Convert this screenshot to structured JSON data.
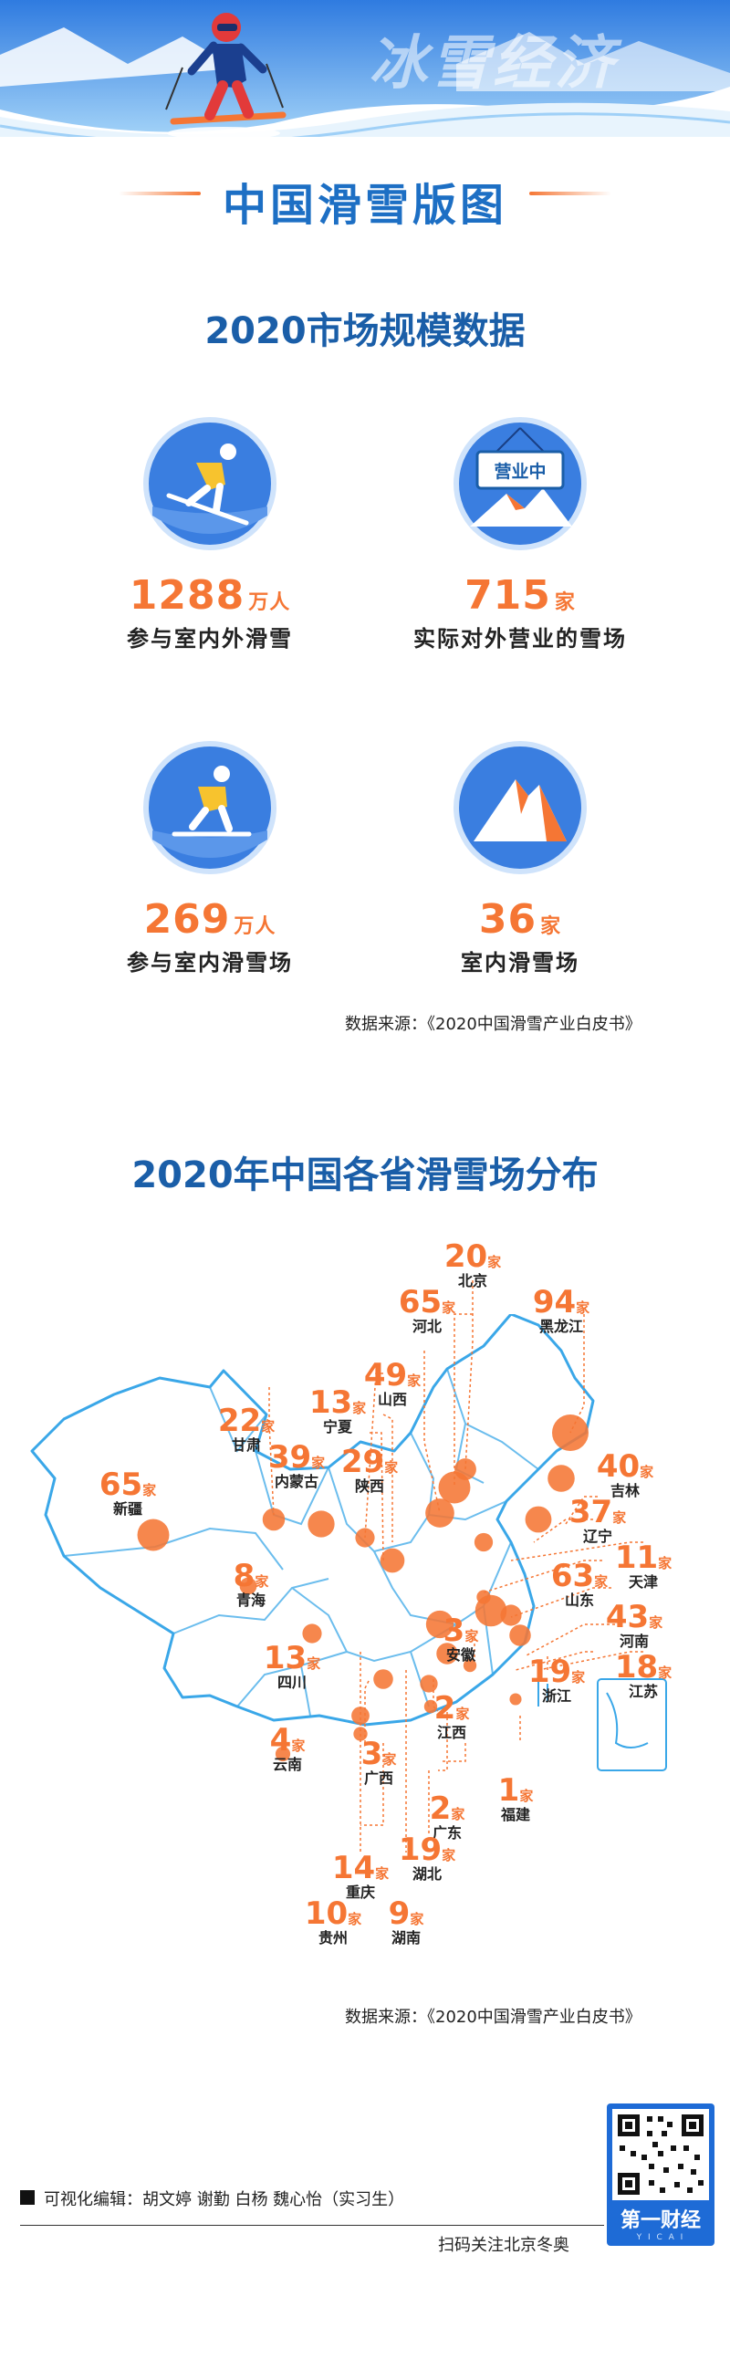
{
  "header": {
    "banner_text": "冰雪经济",
    "title": "中国滑雪版图"
  },
  "market": {
    "section_title": "2020市场规模数据",
    "stats": [
      {
        "number": "1288",
        "unit": "万人",
        "label": "参与室内外滑雪",
        "icon": "skier-downhill-icon"
      },
      {
        "number": "715",
        "unit": "家",
        "label": "实际对外营业的雪场",
        "icon": "open-sign-icon",
        "sign_text": "营业中"
      },
      {
        "number": "269",
        "unit": "万人",
        "label": "参与室内滑雪场",
        "icon": "skier-indoor-icon"
      },
      {
        "number": "36",
        "unit": "家",
        "label": "室内滑雪场",
        "icon": "snow-mountain-icon"
      }
    ],
    "source": "数据来源：《2020中国滑雪产业白皮书》"
  },
  "map": {
    "section_title": "2020年中国各省滑雪场分布",
    "unit": "家",
    "provinces": [
      {
        "name": "北京",
        "count": 20
      },
      {
        "name": "河北",
        "count": 65
      },
      {
        "name": "黑龙江",
        "count": 94
      },
      {
        "name": "山西",
        "count": 49
      },
      {
        "name": "宁夏",
        "count": 13
      },
      {
        "name": "甘肃",
        "count": 22
      },
      {
        "name": "内蒙古",
        "count": 39
      },
      {
        "name": "陕西",
        "count": 29
      },
      {
        "name": "新疆",
        "count": 65
      },
      {
        "name": "吉林",
        "count": 40
      },
      {
        "name": "辽宁",
        "count": 37
      },
      {
        "name": "天津",
        "count": 11
      },
      {
        "name": "青海",
        "count": 8
      },
      {
        "name": "山东",
        "count": 63
      },
      {
        "name": "河南",
        "count": 43
      },
      {
        "name": "四川",
        "count": 13
      },
      {
        "name": "安徽",
        "count": 3
      },
      {
        "name": "浙江",
        "count": 19
      },
      {
        "name": "江苏",
        "count": 18
      },
      {
        "name": "江西",
        "count": 2
      },
      {
        "name": "云南",
        "count": 4
      },
      {
        "name": "广西",
        "count": 3
      },
      {
        "name": "福建",
        "count": 1
      },
      {
        "name": "广东",
        "count": 2
      },
      {
        "name": "重庆",
        "count": 14
      },
      {
        "name": "湖北",
        "count": 19
      },
      {
        "name": "贵州",
        "count": 10
      },
      {
        "name": "湖南",
        "count": 9
      }
    ],
    "source": "数据来源：《2020中国滑雪产业白皮书》"
  },
  "footer": {
    "editors": "可视化编辑：胡文婷   谢勤   白杨   魏心怡（实习生）",
    "scan_text": "扫码关注北京冬奥",
    "brand": "第一财经",
    "brand_sub": "Y I C A I"
  },
  "colors": {
    "accent_orange": "#f57634",
    "title_blue": "#1d6fc4",
    "map_line_blue": "#3aa7e8",
    "icon_blue": "#3a7ee0"
  }
}
